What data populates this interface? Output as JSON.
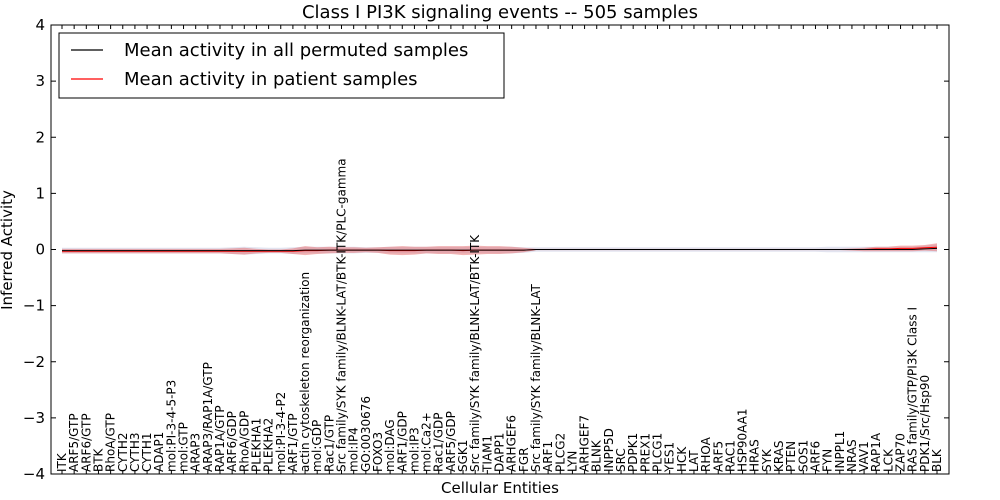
{
  "chart_data": {
    "type": "line",
    "title": "Class I PI3K signaling events -- 505 samples",
    "xlabel": "Cellular Entities",
    "ylabel": "Inferred Activity",
    "ylim": [
      -4,
      4
    ],
    "yticks": [
      {
        "value": 4,
        "label": "4"
      },
      {
        "value": 3,
        "label": "3"
      },
      {
        "value": 2,
        "label": "2"
      },
      {
        "value": 1,
        "label": "1"
      },
      {
        "value": 0,
        "label": "0"
      },
      {
        "value": -1,
        "label": "−1"
      },
      {
        "value": -2,
        "label": "−2"
      },
      {
        "value": -3,
        "label": "−3"
      },
      {
        "value": -4,
        "label": "−4"
      }
    ],
    "grid": false,
    "legend_position": "top-left",
    "categories": [
      "ITK",
      "ARF5/GTP",
      "ARF6/GTP",
      "BTK",
      "RhoA/GTP",
      "CYTH2",
      "CYTH3",
      "CYTH1",
      "ADAP1",
      "mol:PI-3-4-5-P3",
      "mol:GTP",
      "ARAP3",
      "ARAP3/RAP1A/GTP",
      "RAP1A/GTP",
      "ARF6/GDP",
      "RhoA/GDP",
      "PLEKHA1",
      "PLEKHA2",
      "mol:PI-3-4-P2",
      "ARF1/GTP",
      "actin cytoskeleton reorganization",
      "mol:GDP",
      "Rac1/GTP",
      "Src family/SYK family/BLNK-LAT/BTK-ITK/PLC-gamma",
      "mol:IP4",
      "GO:0030676",
      "FOXO3",
      "mol:DAG",
      "ARF1/GDP",
      "mol:IP3",
      "mol:Ca2+",
      "Rac1/GDP",
      "ARF5/GDP",
      "SGK1",
      "Src family/SYK family/BLNK-LAT/BTK-ITK",
      "TIAM1",
      "DAPP1",
      "ARHGEF6",
      "FGR",
      "Src family/SYK family/BLNK-LAT",
      "ARF1",
      "PLCG2",
      "LYN",
      "ARHGEF7",
      "BLNK",
      "INPP5D",
      "SRC",
      "PDPK1",
      "PREX1",
      "PLCG1",
      "YES1",
      "HCK",
      "LAT",
      "RHOA",
      "ARF5",
      "RAC1",
      "HSP90AA1",
      "HRAS",
      "SYK",
      "KRAS",
      "PTEN",
      "SOS1",
      "ARF6",
      "FYN",
      "INPPL1",
      "NRAS",
      "VAV1",
      "RAP1A",
      "LCK",
      "ZAP70",
      "RAS family/GTP/PI3K Class I",
      "PDK1/Src/Hsp90",
      "BLK"
    ],
    "series": [
      {
        "name": "Mean activity in all permuted samples",
        "color": "#000000",
        "values": [
          -0.02,
          -0.02,
          -0.02,
          -0.02,
          -0.02,
          -0.02,
          -0.02,
          -0.02,
          -0.02,
          -0.02,
          -0.02,
          -0.02,
          -0.02,
          -0.02,
          -0.02,
          -0.02,
          -0.02,
          -0.02,
          -0.02,
          -0.02,
          -0.01,
          -0.01,
          -0.01,
          -0.01,
          -0.01,
          -0.01,
          -0.01,
          -0.01,
          -0.01,
          -0.01,
          -0.01,
          -0.01,
          -0.01,
          -0.01,
          -0.01,
          -0.01,
          -0.01,
          -0.01,
          -0.01,
          0.0,
          0.0,
          0.0,
          0.0,
          0.0,
          0.0,
          0.0,
          0.0,
          0.0,
          0.0,
          0.0,
          0.0,
          0.0,
          0.0,
          0.0,
          0.0,
          0.0,
          0.0,
          0.0,
          0.0,
          0.0,
          0.0,
          0.0,
          0.0,
          0.0,
          0.0,
          0.0,
          0.0,
          0.0,
          0.0,
          0.0,
          0.0,
          0.01,
          0.02
        ],
        "band": [
          0.05,
          0.05,
          0.05,
          0.05,
          0.05,
          0.05,
          0.05,
          0.05,
          0.05,
          0.05,
          0.05,
          0.05,
          0.05,
          0.05,
          0.06,
          0.07,
          0.06,
          0.05,
          0.05,
          0.06,
          0.06,
          0.06,
          0.06,
          0.06,
          0.06,
          0.05,
          0.05,
          0.06,
          0.06,
          0.06,
          0.06,
          0.06,
          0.06,
          0.06,
          0.06,
          0.06,
          0.06,
          0.06,
          0.05,
          0.04,
          0.04,
          0.04,
          0.04,
          0.04,
          0.04,
          0.04,
          0.04,
          0.04,
          0.04,
          0.04,
          0.04,
          0.04,
          0.04,
          0.04,
          0.04,
          0.04,
          0.04,
          0.04,
          0.04,
          0.04,
          0.04,
          0.04,
          0.04,
          0.05,
          0.05,
          0.05,
          0.05,
          0.05,
          0.05,
          0.05,
          0.05,
          0.06,
          0.07
        ]
      },
      {
        "name": "Mean activity in patient samples",
        "color": "#ff0000",
        "values": [
          -0.03,
          -0.03,
          -0.03,
          -0.03,
          -0.03,
          -0.03,
          -0.03,
          -0.03,
          -0.03,
          -0.03,
          -0.03,
          -0.03,
          -0.03,
          -0.03,
          -0.03,
          -0.03,
          -0.03,
          -0.03,
          -0.03,
          -0.03,
          -0.02,
          -0.02,
          -0.01,
          -0.01,
          -0.01,
          -0.01,
          -0.01,
          -0.02,
          -0.02,
          -0.02,
          -0.01,
          -0.01,
          -0.01,
          -0.02,
          -0.01,
          -0.01,
          -0.01,
          -0.01,
          -0.01,
          0.0,
          0.0,
          0.0,
          0.0,
          0.0,
          0.0,
          0.0,
          0.0,
          0.0,
          0.0,
          0.0,
          0.0,
          0.0,
          0.0,
          0.0,
          0.0,
          0.0,
          0.0,
          0.0,
          0.0,
          0.0,
          0.0,
          0.0,
          0.0,
          0.0,
          0.0,
          0.0,
          0.0,
          0.01,
          0.01,
          0.02,
          0.02,
          0.03,
          0.04
        ],
        "band": [
          0.04,
          0.04,
          0.04,
          0.04,
          0.04,
          0.04,
          0.04,
          0.04,
          0.04,
          0.04,
          0.04,
          0.04,
          0.04,
          0.04,
          0.05,
          0.06,
          0.04,
          0.03,
          0.03,
          0.05,
          0.08,
          0.06,
          0.06,
          0.05,
          0.05,
          0.04,
          0.05,
          0.07,
          0.08,
          0.07,
          0.06,
          0.07,
          0.07,
          0.08,
          0.08,
          0.07,
          0.07,
          0.06,
          0.04,
          0.01,
          0.01,
          0.01,
          0.01,
          0.01,
          0.01,
          0.01,
          0.01,
          0.01,
          0.01,
          0.01,
          0.01,
          0.01,
          0.01,
          0.01,
          0.01,
          0.01,
          0.01,
          0.01,
          0.01,
          0.01,
          0.01,
          0.01,
          0.01,
          0.01,
          0.01,
          0.02,
          0.03,
          0.04,
          0.04,
          0.05,
          0.05,
          0.05,
          0.07
        ]
      }
    ]
  }
}
